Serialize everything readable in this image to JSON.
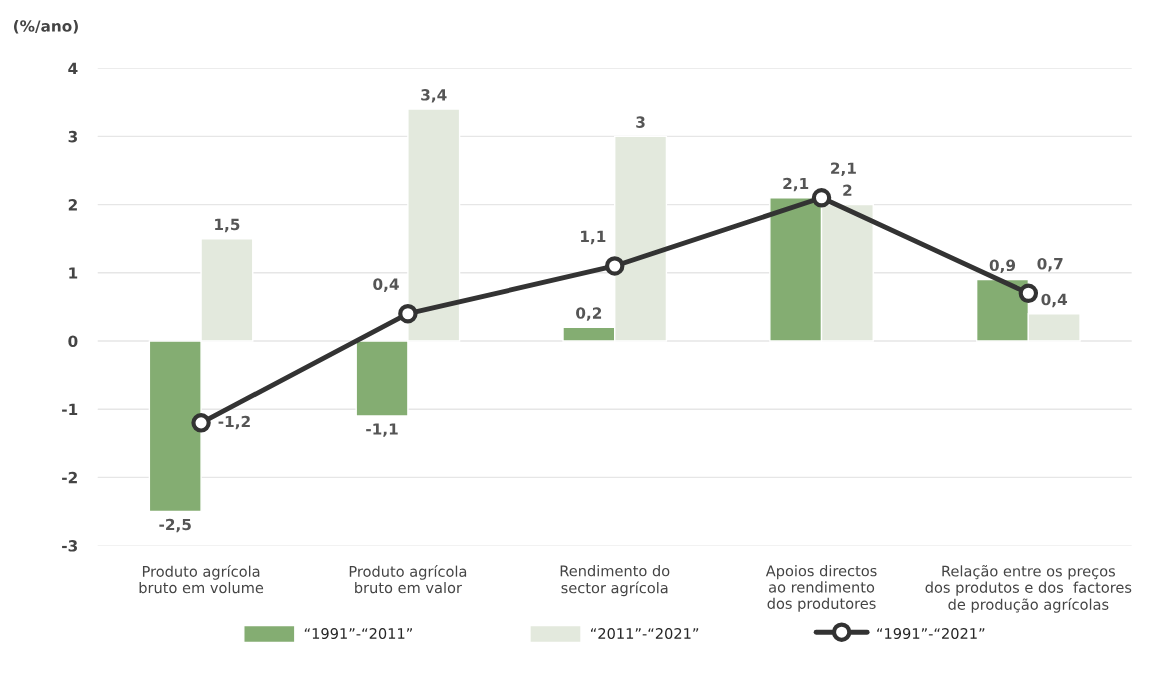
{
  "chart_data": {
    "type": "bar",
    "ylabel": "(%/ano)",
    "categories": [
      "Produto agrícola\nbruto em volume",
      "Produto agrícola\nbruto em valor",
      "Rendimento do\nsector agrícola",
      "Apoios directos\nao rendimento\ndos produtores",
      "Relação entre os preços\ndos produtos e dos  factores\nde produção agrícolas"
    ],
    "series": [
      {
        "name": "“1991”-“2011”",
        "color": "#84ad72",
        "values": [
          -2.5,
          -1.1,
          0.2,
          2.1,
          0.9
        ],
        "value_labels": [
          "-2,5",
          "-1,1",
          "0,2",
          "2,1",
          "0,9"
        ]
      },
      {
        "name": "“2011”-“2021”",
        "color": "#e3e9dd",
        "values": [
          1.5,
          3.4,
          3,
          2,
          0.4
        ],
        "value_labels": [
          "1,5",
          "3,4",
          "3",
          "2",
          "0,4"
        ]
      },
      {
        "name": "“1991”-“2021”",
        "type": "line",
        "color": "#333333",
        "marker": "circle",
        "values": [
          -1.2,
          0.4,
          1.1,
          2.1,
          0.7
        ],
        "value_labels": [
          "-1,2",
          "0,4",
          "1,1",
          "2,1",
          "0,7"
        ]
      }
    ],
    "ylim": [
      -3,
      4
    ],
    "yticks": [
      -3,
      -2,
      -1,
      0,
      1,
      2,
      3,
      4
    ],
    "grid": "y",
    "legend": "bottom"
  }
}
